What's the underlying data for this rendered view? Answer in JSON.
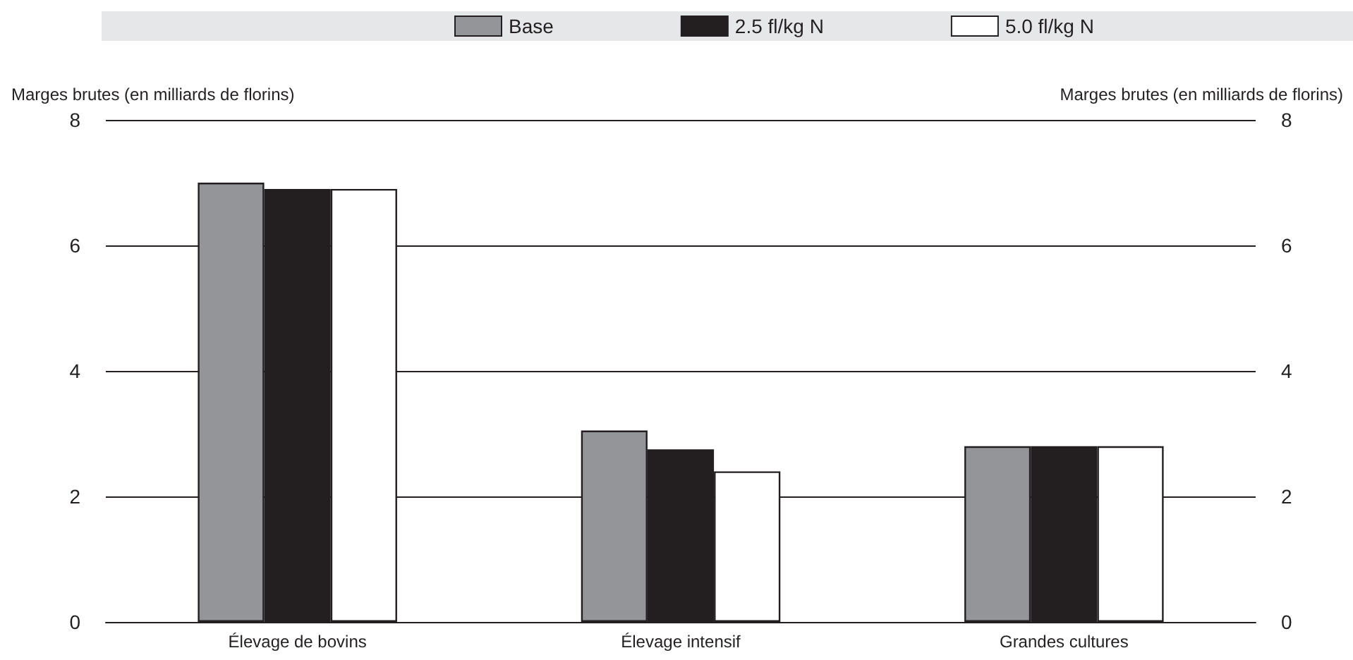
{
  "chart_data": {
    "type": "bar",
    "categories": [
      "Élevage de bovins",
      "Élevage intensif",
      "Grandes cultures"
    ],
    "series": [
      {
        "name": "Base",
        "color": "#939598",
        "values": [
          7.0,
          3.05,
          2.8
        ]
      },
      {
        "name": "2.5 fl/kg N",
        "color": "#231f20",
        "values": [
          6.9,
          2.75,
          2.8
        ]
      },
      {
        "name": "5.0 fl/kg N",
        "color": "#ffffff",
        "values": [
          6.9,
          2.4,
          2.8
        ]
      }
    ],
    "ylabel": "Marges brutes (en milliards de florins)",
    "y2label": "Marges brutes (en milliards de florins)",
    "ylim": [
      0,
      8
    ],
    "yticks": [
      0,
      2,
      4,
      6,
      8
    ],
    "y2lim": [
      0,
      8
    ],
    "y2ticks": [
      0,
      2,
      4,
      6,
      8
    ],
    "grid": "y",
    "legend": "top"
  }
}
